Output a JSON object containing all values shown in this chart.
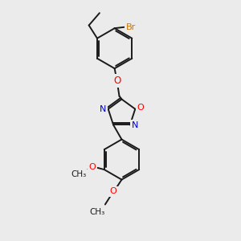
{
  "bg_color": "#ebebeb",
  "bond_color": "#1a1a1a",
  "bond_width": 1.4,
  "dbo": 0.07,
  "fs": 7.5,
  "Br_color": "#cc7700",
  "O_color": "#ff0000",
  "N_color": "#0000cc",
  "figsize": [
    3.0,
    3.0
  ],
  "dpi": 100,
  "xlim": [
    0,
    10
  ],
  "ylim": [
    0,
    10
  ]
}
